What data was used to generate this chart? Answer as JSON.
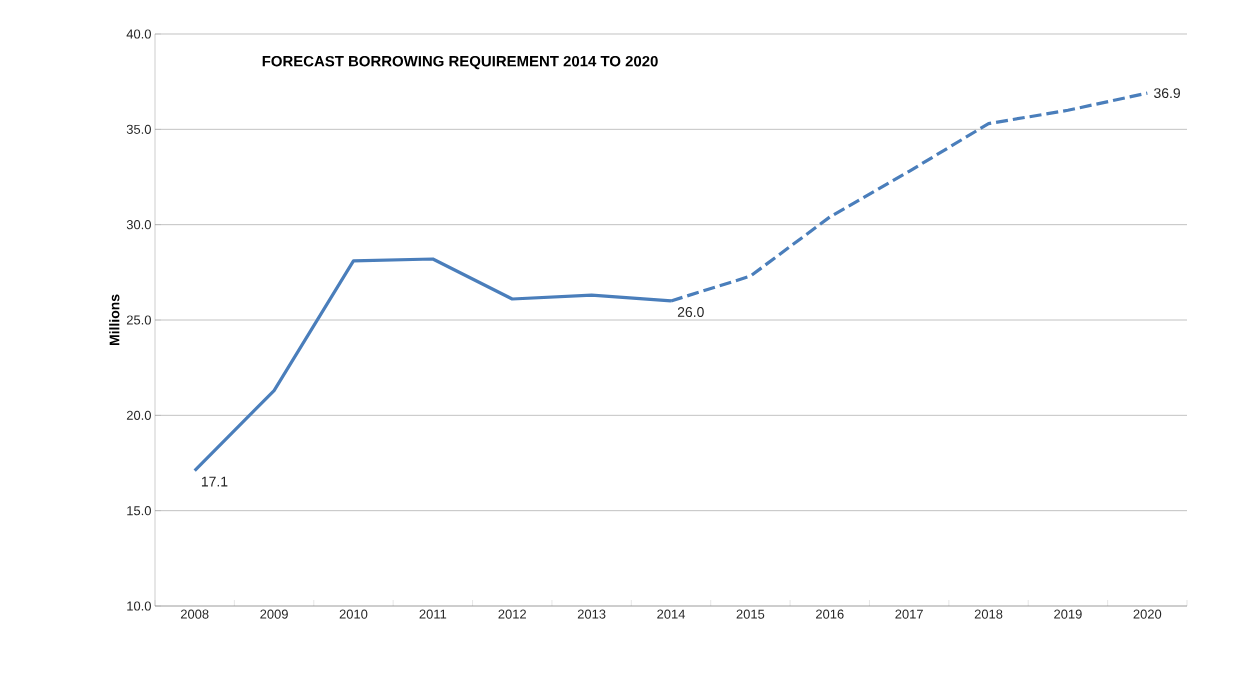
{
  "chart_data": {
    "type": "line",
    "title": "FORECAST BORROWING REQUIREMENT 2014 TO 2020",
    "ylabel": "Millions",
    "categories": [
      "2008",
      "2009",
      "2010",
      "2011",
      "2012",
      "2013",
      "2014",
      "2015",
      "2016",
      "2017",
      "2018",
      "2019",
      "2020"
    ],
    "series": [
      {
        "color": "#4a7ebb",
        "line_style": "solid",
        "values": [
          17.1,
          21.3,
          28.1,
          28.2,
          26.1,
          26.3,
          26.0,
          null,
          null,
          null,
          null,
          null,
          null
        ],
        "value_labels": [
          "17.1",
          null,
          null,
          null,
          null,
          null,
          "26.0",
          null,
          null,
          null,
          null,
          null,
          null
        ]
      },
      {
        "color": "#4a7ebb",
        "line_style": "dashed",
        "values": [
          null,
          null,
          null,
          null,
          null,
          null,
          26.0,
          27.3,
          30.4,
          32.8,
          35.3,
          36.0,
          36.9
        ],
        "value_labels": [
          null,
          null,
          null,
          null,
          null,
          null,
          null,
          null,
          null,
          null,
          null,
          null,
          "36.9"
        ]
      }
    ],
    "ylim": [
      10,
      40
    ],
    "yticks": [
      {
        "value": 10,
        "label": "10.0"
      },
      {
        "value": 15,
        "label": "15.0"
      },
      {
        "value": 20,
        "label": "20.0"
      },
      {
        "value": 25,
        "label": "25.0"
      },
      {
        "value": 30,
        "label": "30.0"
      },
      {
        "value": 35,
        "label": "35.0"
      },
      {
        "value": 40,
        "label": "40.0"
      }
    ],
    "grid": "y"
  }
}
